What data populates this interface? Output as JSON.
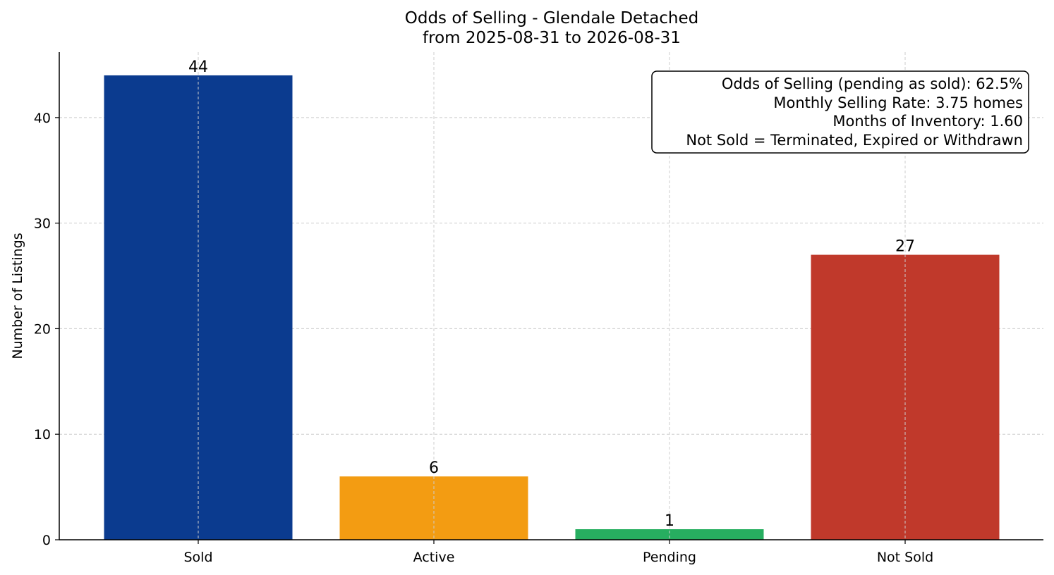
{
  "chart_data": {
    "type": "bar",
    "title": "Odds of Selling - Glendale Detached",
    "subtitle": "from 2025-08-31 to 2026-08-31",
    "xlabel": "",
    "ylabel": "Number of Listings",
    "categories": [
      "Sold",
      "Active",
      "Pending",
      "Not Sold"
    ],
    "values": [
      44,
      6,
      1,
      27
    ],
    "colors": [
      "#0b3b8f",
      "#f39c12",
      "#27ae60",
      "#c0392b"
    ],
    "data_labels": [
      "44",
      "6",
      "1",
      "27"
    ],
    "ylim": [
      0,
      46.2
    ],
    "yticks": [
      0,
      10,
      20,
      30,
      40
    ],
    "grid": true,
    "legend": "none",
    "annotation_box": {
      "placement": "top-right",
      "lines": [
        "Odds of Selling (pending as sold): 62.5%",
        "Monthly Selling Rate: 3.75 homes",
        "Months of Inventory: 1.60",
        "Not Sold = Terminated, Expired or Withdrawn"
      ]
    }
  }
}
